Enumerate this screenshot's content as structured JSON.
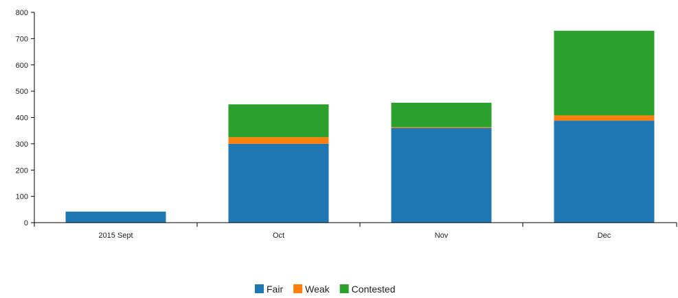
{
  "chart_data": {
    "type": "bar",
    "stacked": true,
    "categories": [
      "2015 Sept",
      "Oct",
      "Nov",
      "Dec"
    ],
    "series": [
      {
        "name": "Fair",
        "values": [
          42,
          300,
          360,
          388
        ]
      },
      {
        "name": "Weak",
        "values": [
          0,
          25,
          3,
          20
        ]
      },
      {
        "name": "Contested",
        "values": [
          0,
          125,
          93,
          322
        ]
      }
    ],
    "colors": {
      "Fair": "#1f77b4",
      "Weak": "#ff7f0e",
      "Contested": "#2ca02c"
    },
    "ylim": [
      0,
      800
    ],
    "yticks": [
      0,
      100,
      200,
      300,
      400,
      500,
      600,
      700,
      800
    ],
    "title": "",
    "xlabel": "",
    "ylabel": "",
    "grid": false,
    "legend": "bottom-center"
  }
}
